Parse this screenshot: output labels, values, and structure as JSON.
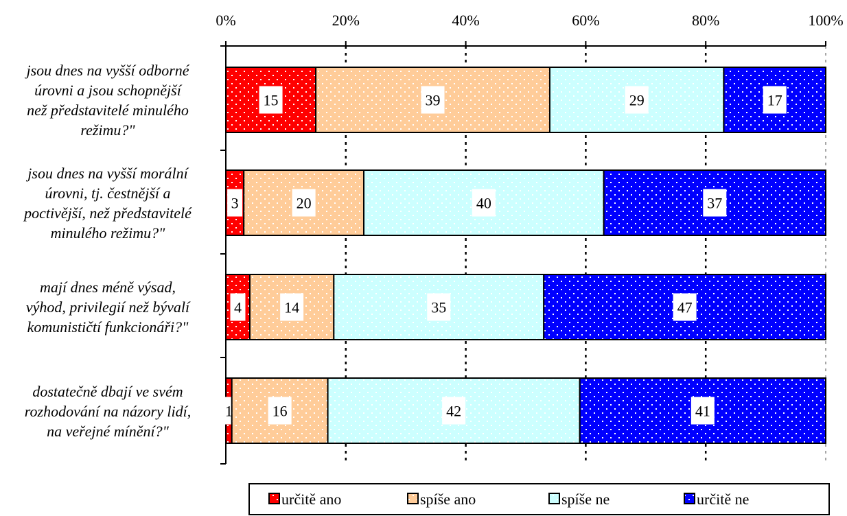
{
  "chart_data": {
    "type": "bar",
    "orientation": "horizontal",
    "stacked": true,
    "percent_stacked": true,
    "categories": [
      "jsou dnes na vyšší odborné úrovni a jsou schopnější než představitelé minulého režimu?\"",
      "jsou dnes na vyšší morální úrovni, tj. čestnější a poctivější, než představitelé minulého režimu?\"",
      "mají dnes méně výsad, výhod, privilegií než bývalí komunističtí funkcionáři?\"",
      "dostatečně dbají ve svém rozhodování na názory lidí, na veřejné mínění?\""
    ],
    "category_lines": [
      [
        "jsou dnes na vyšší odborné",
        "úrovni a jsou schopnější",
        "než představitelé minulého",
        "režimu?\""
      ],
      [
        "jsou dnes na vyšší morální",
        "úrovni, tj. čestnější a",
        "poctivější, než představitelé",
        "minulého režimu?\""
      ],
      [
        "mají dnes méně výsad,",
        "výhod, privilegií než bývalí",
        "komunističtí funkcionáři?\""
      ],
      [
        "dostatečně dbají ve svém",
        "rozhodování na názory lidí,",
        "na veřejné mínění?\""
      ]
    ],
    "series": [
      {
        "name": "určitě ano",
        "color": "#ff0000",
        "dot": "#ffffff",
        "values": [
          15,
          3,
          4,
          1
        ]
      },
      {
        "name": "spíše ano",
        "color": "#ffcc99",
        "dot": "#ffffff",
        "values": [
          39,
          20,
          14,
          16
        ]
      },
      {
        "name": "spíše ne",
        "color": "#ccffff",
        "dot": "#ffffff",
        "values": [
          29,
          40,
          35,
          42
        ]
      },
      {
        "name": "určitě ne",
        "color": "#0000ff",
        "dot": "#ffffff",
        "values": [
          17,
          37,
          47,
          41
        ]
      }
    ],
    "x_ticks": [
      "0%",
      "20%",
      "40%",
      "60%",
      "80%",
      "100%"
    ],
    "xlim": [
      0,
      100
    ],
    "x_axis_position": "top",
    "gridlines": "vertical dotted",
    "legend_position": "bottom",
    "title": "",
    "xlabel": "",
    "ylabel": ""
  }
}
